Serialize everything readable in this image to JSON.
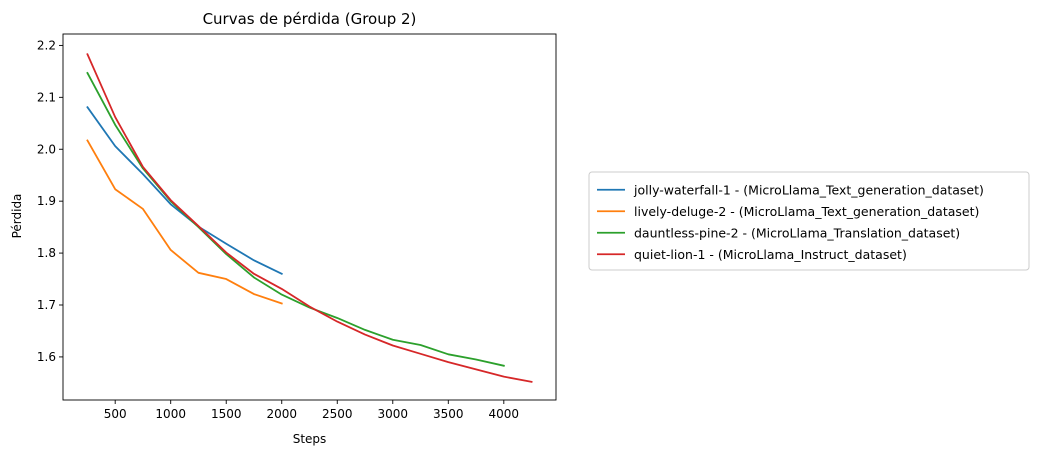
{
  "chart_data": {
    "type": "line",
    "title": "Curvas de pérdida (Group 2)",
    "xlabel": "Steps",
    "ylabel": "Pérdida",
    "xlim": [
      30,
      4470
    ],
    "ylim": [
      1.517,
      2.222
    ],
    "xticks": [
      500,
      1000,
      1500,
      2000,
      2500,
      3000,
      3500,
      4000
    ],
    "yticks": [
      1.6,
      1.7,
      1.8,
      1.9,
      2.0,
      2.1,
      2.2
    ],
    "grid": false,
    "legend_placement": "right (outside plot)",
    "series": [
      {
        "name": "jolly-waterfall-1 - (MicroLlama_Text_generation_dataset)",
        "color": "#1f77b4",
        "x": [
          250,
          500,
          750,
          1000,
          1250,
          1500,
          1750,
          2000
        ],
        "y": [
          2.081,
          2.006,
          1.952,
          1.894,
          1.851,
          1.818,
          1.786,
          1.76
        ]
      },
      {
        "name": "lively-deluge-2 - (MicroLlama_Text_generation_dataset)",
        "color": "#ff7f0e",
        "x": [
          250,
          500,
          750,
          1000,
          1250,
          1500,
          1750,
          2000
        ],
        "y": [
          2.017,
          1.923,
          1.885,
          1.806,
          1.762,
          1.75,
          1.721,
          1.703
        ]
      },
      {
        "name": "dauntless-pine-2 - (MicroLlama_Translation_dataset)",
        "color": "#2ca02c",
        "x": [
          250,
          500,
          750,
          1000,
          1250,
          1500,
          1750,
          2000,
          2250,
          2500,
          2750,
          3000,
          3250,
          3500,
          3750,
          4000
        ],
        "y": [
          2.147,
          2.047,
          1.963,
          1.9,
          1.85,
          1.798,
          1.753,
          1.72,
          1.695,
          1.675,
          1.652,
          1.633,
          1.623,
          1.605,
          1.595,
          1.583
        ]
      },
      {
        "name": "quiet-lion-1 - (MicroLlama_Instruct_dataset)",
        "color": "#d62728",
        "x": [
          250,
          500,
          750,
          1000,
          1250,
          1500,
          1750,
          2000,
          2250,
          2500,
          2750,
          3000,
          3250,
          3500,
          3750,
          4000,
          4250
        ],
        "y": [
          2.183,
          2.062,
          1.966,
          1.902,
          1.852,
          1.801,
          1.76,
          1.731,
          1.697,
          1.668,
          1.643,
          1.622,
          1.606,
          1.59,
          1.576,
          1.562,
          1.552
        ]
      }
    ]
  }
}
